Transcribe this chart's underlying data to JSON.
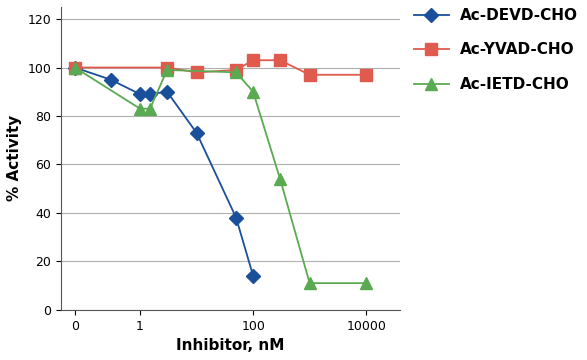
{
  "devd_x": [
    0.07,
    0.3,
    1,
    1.5,
    3,
    10,
    50,
    100
  ],
  "devd_y": [
    100,
    95,
    89,
    89,
    90,
    73,
    38,
    14
  ],
  "yvad_x": [
    0.07,
    3,
    10,
    50,
    100,
    300,
    1000,
    10000
  ],
  "yvad_y": [
    100,
    100,
    98,
    99,
    103,
    103,
    97,
    97
  ],
  "ietd_x": [
    0.07,
    1,
    1.5,
    3,
    50,
    100,
    300,
    1000,
    10000
  ],
  "ietd_y": [
    100,
    83,
    83,
    99,
    98,
    90,
    54,
    11,
    11
  ],
  "devd_color": "#1a4f9c",
  "yvad_color": "#e05a4e",
  "ietd_color": "#5aaa52",
  "xlabel": "Inhibitor, nM",
  "ylabel": "% Activity",
  "ylim": [
    0,
    125
  ],
  "yticks": [
    0,
    20,
    40,
    60,
    80,
    100,
    120
  ],
  "xtick_positions": [
    0.07,
    1,
    100,
    10000
  ],
  "xtick_labels": [
    "0",
    "1",
    "100",
    "10000"
  ],
  "xlim_log": [
    0.04,
    40000
  ],
  "legend_labels": [
    "Ac-DEVD-CHO",
    "Ac-YVAD-CHO",
    "Ac-IETD-CHO"
  ],
  "bg_color": "#ffffff",
  "grid_color": "#b0b0b0"
}
